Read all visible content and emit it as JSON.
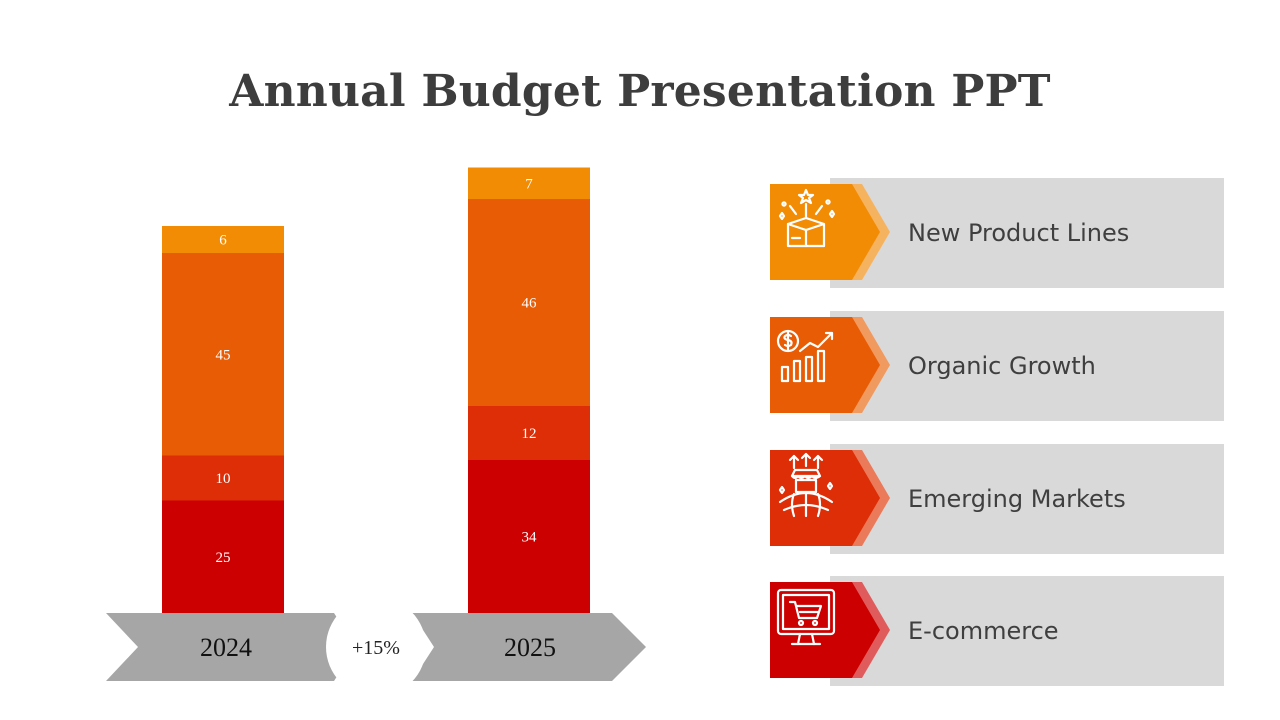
{
  "title": "Annual Budget Presentation PPT",
  "chart_data": {
    "type": "bar",
    "stacked": true,
    "categories": [
      "2024",
      "2025"
    ],
    "series": [
      {
        "name": "E-commerce",
        "color": "#cc0000",
        "values": [
          25,
          34
        ]
      },
      {
        "name": "Emerging Markets",
        "color": "#dd2e07",
        "values": [
          10,
          12
        ]
      },
      {
        "name": "Organic Growth",
        "color": "#e85c05",
        "values": [
          45,
          46
        ]
      },
      {
        "name": "New Product Lines",
        "color": "#f28c05",
        "values": [
          6,
          7
        ]
      }
    ],
    "growth_label": "+15%",
    "xlabel": "",
    "ylabel": ""
  },
  "legend": {
    "items": [
      {
        "label": "New Product Lines",
        "icon": "gift-box-icon",
        "color": "#f28c05",
        "accent": "#f6b35f"
      },
      {
        "label": "Organic Growth",
        "icon": "money-growth-chart-icon",
        "color": "#e85c05",
        "accent": "#f09a5f"
      },
      {
        "label": "Emerging Markets",
        "icon": "global-market-icon",
        "color": "#dd2e07",
        "accent": "#ea7a5a"
      },
      {
        "label": "E-commerce",
        "icon": "shopping-cart-monitor-icon",
        "color": "#cc0000",
        "accent": "#e05c5c"
      }
    ]
  }
}
